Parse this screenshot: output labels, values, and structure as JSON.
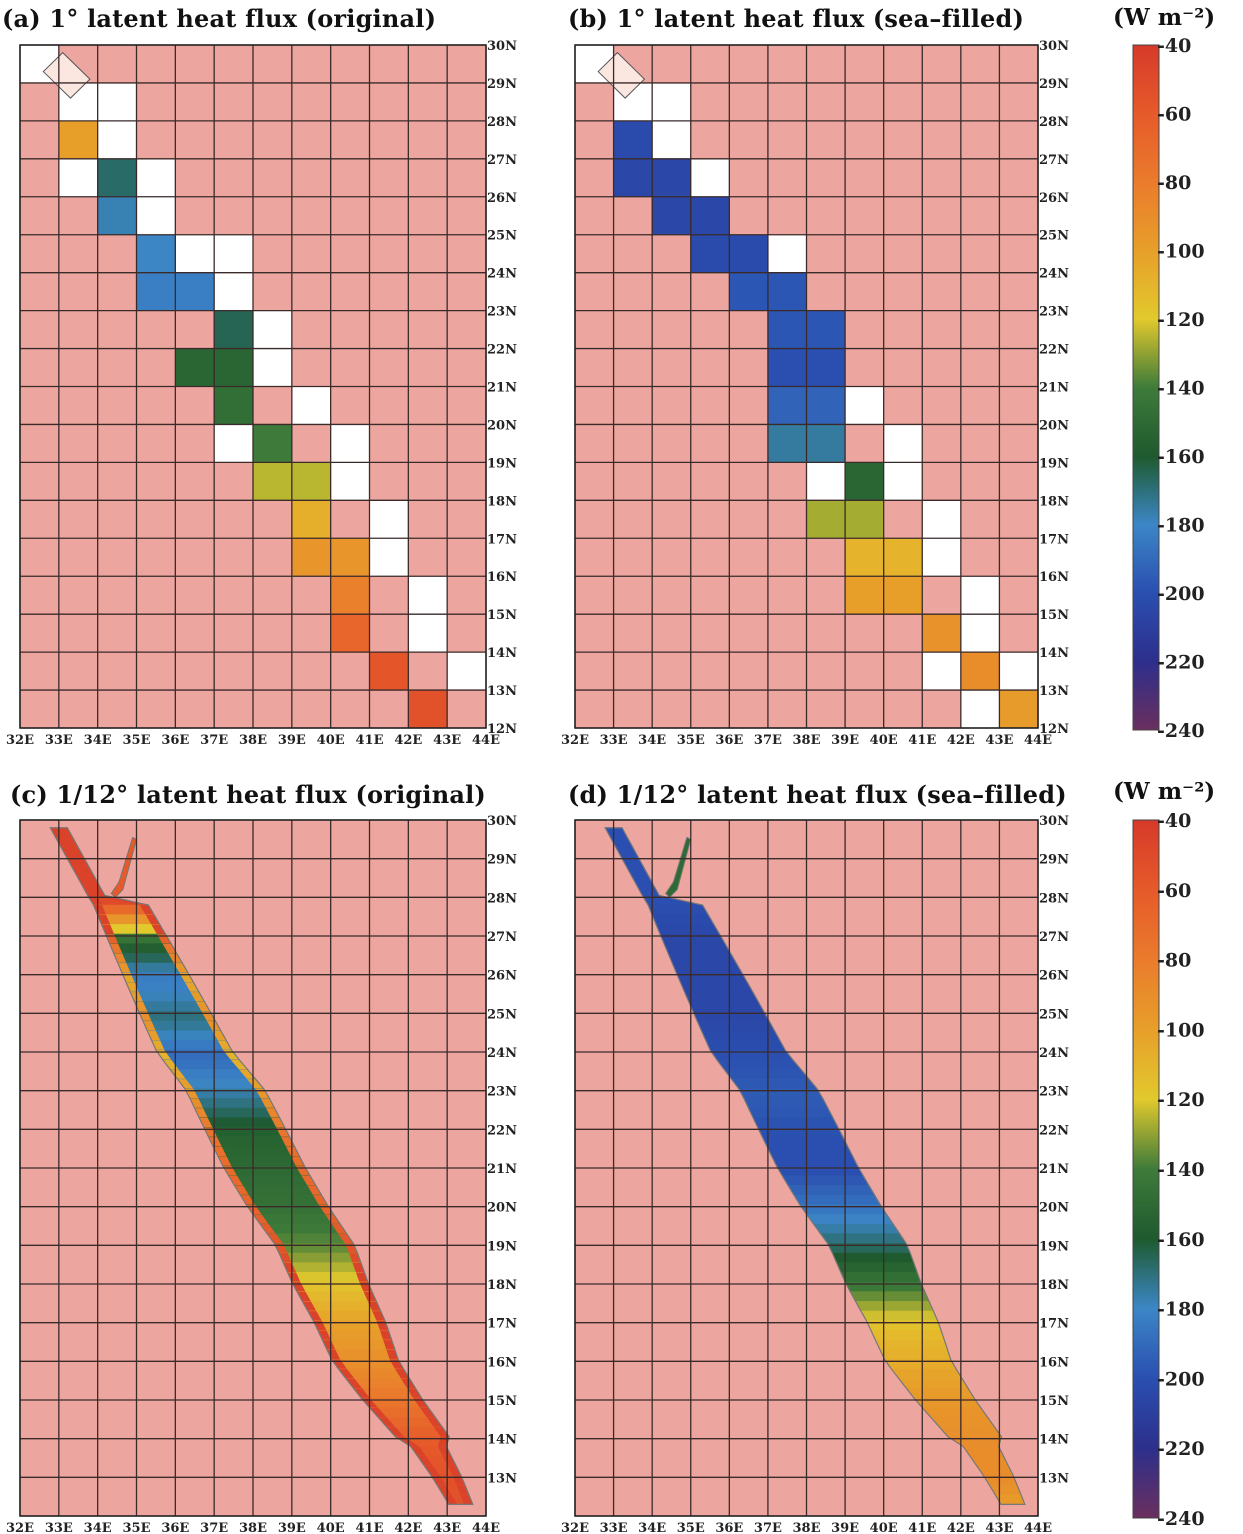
{
  "figure": {
    "panels": [
      {
        "id": "a",
        "title": "(a) 1° latent heat flux (original)",
        "resolution": "1°",
        "variant": "original"
      },
      {
        "id": "b",
        "title": "(b) 1° latent heat flux (sea–filled)",
        "resolution": "1°",
        "variant": "sea-filled"
      },
      {
        "id": "c",
        "title": "(c) 1/12° latent heat flux (original)",
        "resolution": "1/12°",
        "variant": "original"
      },
      {
        "id": "d",
        "title": "(d) 1/12° latent heat flux (sea–filled)",
        "resolution": "1/12°",
        "variant": "sea-filled"
      }
    ],
    "lon_labels": [
      "32E",
      "33E",
      "34E",
      "35E",
      "36E",
      "37E",
      "38E",
      "39E",
      "40E",
      "41E",
      "42E",
      "43E",
      "44E"
    ],
    "lat_labels": [
      "30N",
      "29N",
      "28N",
      "27N",
      "26N",
      "25N",
      "24N",
      "23N",
      "22N",
      "21N",
      "20N",
      "19N",
      "18N",
      "17N",
      "16N",
      "15N",
      "14N",
      "13N",
      "12N"
    ],
    "lon_range": [
      32,
      44
    ],
    "lat_range": [
      12,
      30
    ],
    "land_color": "#eda69f",
    "gridlines": true,
    "colorbar": {
      "unit_label": "(W m⁻²)",
      "ticks": [
        "-40",
        "-60",
        "-80",
        "-100",
        "-120",
        "-140",
        "-160",
        "-180",
        "-200",
        "-220",
        "-240"
      ],
      "stops": [
        "#d63a2a",
        "#e65a2a",
        "#ea7b2c",
        "#e79f2a",
        "#e2c92d",
        "#3e7b3a",
        "#1e5a2e",
        "#3c86c6",
        "#2a4fb0",
        "#2d2f8c",
        "#6a2f5e"
      ]
    }
  },
  "chart_data": {
    "type": "heatmap",
    "title": "Red Sea latent heat flux",
    "unit": "(W m⁻²)",
    "color_range": [
      -240,
      -40
    ],
    "x_range": [
      32,
      44
    ],
    "y_range": [
      12,
      30
    ],
    "x_ticks": [
      "32E",
      "33E",
      "34E",
      "35E",
      "36E",
      "37E",
      "38E",
      "39E",
      "40E",
      "41E",
      "42E",
      "43E",
      "44E"
    ],
    "y_ticks": [
      "12N",
      "13N",
      "14N",
      "15N",
      "16N",
      "17N",
      "18N",
      "19N",
      "20N",
      "21N",
      "22N",
      "23N",
      "24N",
      "25N",
      "26N",
      "27N",
      "28N",
      "29N",
      "30N"
    ],
    "cells_1deg": {
      "lat": [
        28,
        27,
        26,
        25,
        24,
        23,
        22,
        21,
        20,
        19,
        18,
        17,
        16,
        15,
        14,
        13,
        12
      ],
      "lon_center": [
        34.5,
        35.0,
        35.5,
        36.0,
        36.5,
        37.3,
        37.8,
        38.3,
        38.9,
        39.6,
        40.0,
        40.5,
        40.9,
        41.6,
        42.4,
        43.0,
        43.5
      ],
      "original": [
        -50,
        -150,
        -185,
        -170,
        -190,
        -175,
        -155,
        -150,
        -145,
        -135,
        -115,
        -100,
        -90,
        -75,
        -60,
        -55,
        -55
      ],
      "sea_filled": [
        -200,
        -205,
        -205,
        -205,
        -200,
        -195,
        -200,
        -200,
        -185,
        -165,
        -140,
        -115,
        -105,
        -95,
        -90,
        -90,
        -105
      ]
    },
    "series": [
      {
        "name": "(a) 1° latent heat flux (original)"
      },
      {
        "name": "(b) 1° latent heat flux (sea–filled)"
      },
      {
        "name": "(c) 1/12° latent heat flux (original)"
      },
      {
        "name": "(d) 1/12° latent heat flux (sea–filled)"
      }
    ]
  }
}
